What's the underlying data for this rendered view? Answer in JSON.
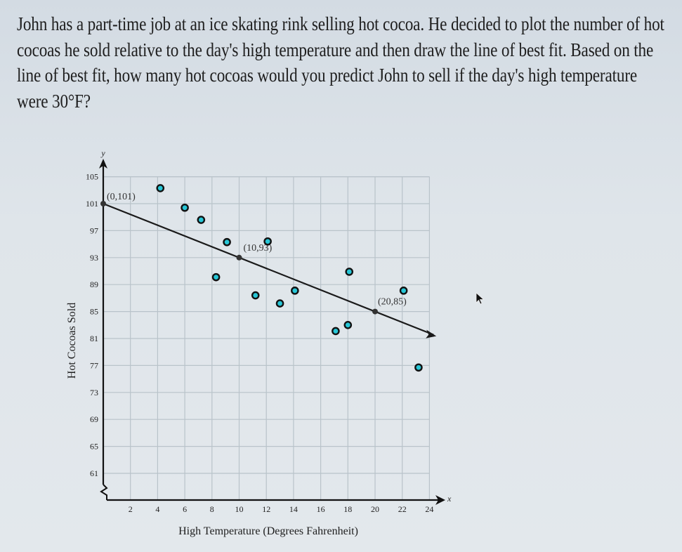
{
  "question": {
    "text": "John has a part-time job at an ice skating rink selling hot cocoa. He decided to plot the number of hot cocoas he sold relative to the day's high temperature and then draw the line of best fit. Based on the line of best fit, how many hot cocoas would you predict John to sell if the day's high temperature were 30°F?"
  },
  "colors": {
    "point_fill": "#27c6d6",
    "point_stroke": "#111111",
    "line": "#1a1a1a",
    "grid": "#b9c3ca",
    "background": "#dde3e8"
  },
  "chart_data": {
    "type": "scatter",
    "title": "",
    "xlabel": "High Temperature (Degrees Fahrenheit)",
    "ylabel": "Hot Cocoas Sold",
    "x_axis_letter": "x",
    "y_axis_letter": "y",
    "xlim": [
      0,
      24
    ],
    "ylim": [
      57,
      105
    ],
    "x_ticks": [
      2,
      4,
      6,
      8,
      10,
      12,
      14,
      16,
      18,
      20,
      22,
      24
    ],
    "y_ticks": [
      61,
      65,
      69,
      73,
      77,
      81,
      85,
      89,
      93,
      97,
      101,
      105
    ],
    "y_axis_break": true,
    "grid": true,
    "points": [
      {
        "x": 4.2,
        "y": 103.3
      },
      {
        "x": 6.0,
        "y": 100.4
      },
      {
        "x": 7.2,
        "y": 98.6
      },
      {
        "x": 9.1,
        "y": 95.3
      },
      {
        "x": 12.1,
        "y": 95.4
      },
      {
        "x": 8.3,
        "y": 90.1
      },
      {
        "x": 11.2,
        "y": 87.4
      },
      {
        "x": 13.0,
        "y": 86.2
      },
      {
        "x": 14.1,
        "y": 88.1
      },
      {
        "x": 18.1,
        "y": 90.9
      },
      {
        "x": 17.1,
        "y": 82.1
      },
      {
        "x": 18.0,
        "y": 83.0
      },
      {
        "x": 22.1,
        "y": 88.1
      },
      {
        "x": 23.2,
        "y": 76.7
      }
    ],
    "best_fit_line": {
      "slope": -0.8,
      "intercept": 101,
      "x_start": 0,
      "x_end": 24,
      "labeled_points": [
        {
          "x": 0,
          "y": 101,
          "label": "(0,101)"
        },
        {
          "x": 10,
          "y": 93,
          "label": "(10,93)"
        },
        {
          "x": 20,
          "y": 85,
          "label": "(20,85)"
        }
      ]
    }
  }
}
